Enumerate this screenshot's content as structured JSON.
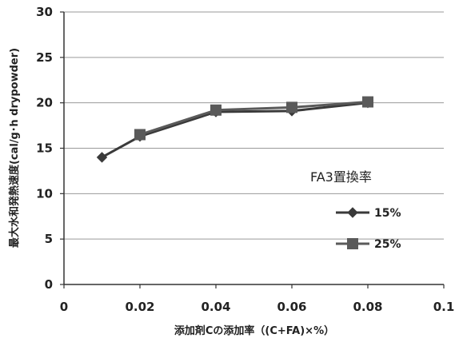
{
  "chart_data": {
    "type": "line",
    "xlabel": "添加剤Cの添加率（(C+FA)×%）",
    "ylabel": "最大水和発熱速度(cal/g･h drypowder)",
    "xlim": [
      0,
      0.1
    ],
    "ylim": [
      0,
      30
    ],
    "x_ticks": [
      0,
      0.02,
      0.04,
      0.06,
      0.08,
      0.1
    ],
    "x_tick_labels": [
      "0",
      "0.02",
      "0.04",
      "0.06",
      "0.08",
      "0.1"
    ],
    "y_ticks": [
      0,
      5,
      10,
      15,
      20,
      25,
      30
    ],
    "y_tick_labels": [
      "0",
      "5",
      "10",
      "15",
      "20",
      "25",
      "30"
    ],
    "grid": "horizontal",
    "legend": {
      "title": "FA3置換率",
      "placement": "right"
    },
    "series": [
      {
        "name": "15%",
        "marker": "diamond",
        "color": "#3a3a3a",
        "x": [
          0.01,
          0.02,
          0.04,
          0.06,
          0.08
        ],
        "y": [
          14.0,
          16.3,
          19.0,
          19.1,
          20.0
        ]
      },
      {
        "name": "25%",
        "marker": "square",
        "color": "#5a5a5a",
        "x": [
          0.02,
          0.04,
          0.06,
          0.08
        ],
        "y": [
          16.5,
          19.2,
          19.5,
          20.1
        ]
      }
    ]
  }
}
